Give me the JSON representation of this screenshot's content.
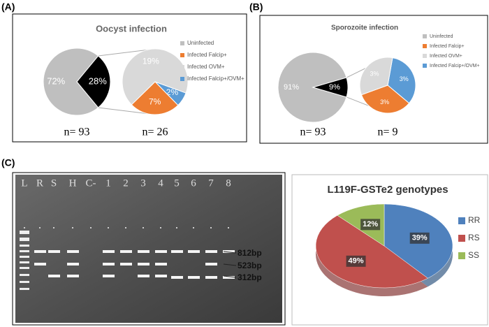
{
  "chart_data": [
    {
      "type": "pie-of-pie",
      "panel": "(A)",
      "title": "Oocyst  infection",
      "legend": [
        {
          "name": "Uninfected",
          "color": "#bfbfbf"
        },
        {
          "name": "Infected Falcip+",
          "color": "#ed7d31"
        },
        {
          "name": "Infected OVM+",
          "color": "#d9d9d9"
        },
        {
          "name": "Infected Falcip+/OVM+",
          "color": "#5b9bd5"
        }
      ],
      "pies": [
        {
          "values": [
            72,
            28
          ],
          "value_labels": [
            "72%",
            "28%"
          ],
          "colors": [
            "#bfbfbf",
            "#000000"
          ],
          "n": "n= 93"
        },
        {
          "values": [
            2,
            7,
            19
          ],
          "value_labels": [
            "2%",
            "7%",
            "19%"
          ],
          "colors": [
            "#5b9bd5",
            "#ed7d31",
            "#d9d9d9"
          ],
          "n": "n= 26"
        }
      ]
    },
    {
      "type": "pie-of-pie",
      "panel": "(B)",
      "title": "Sporozoite infection",
      "legend": [
        {
          "name": "Uninfected",
          "color": "#bfbfbf"
        },
        {
          "name": "Infected Falcip+",
          "color": "#ed7d31"
        },
        {
          "name": "Infected OVM+",
          "color": "#d9d9d9"
        },
        {
          "name": "Infected Falcip+/OVM+",
          "color": "#5b9bd5"
        }
      ],
      "pies": [
        {
          "values": [
            91,
            9
          ],
          "value_labels": [
            "91%",
            "9%"
          ],
          "colors": [
            "#bfbfbf",
            "#000000"
          ],
          "n": "n= 93"
        },
        {
          "values": [
            3,
            3,
            3
          ],
          "value_labels": [
            "3%",
            "3%",
            "3%"
          ],
          "colors": [
            "#5b9bd5",
            "#ed7d31",
            "#d9d9d9"
          ],
          "n": "n= 9"
        }
      ]
    },
    {
      "type": "pie3d",
      "title": "L119F-GSTe2 genotypes",
      "categories": [
        "RR",
        "RS",
        "SS"
      ],
      "values": [
        39,
        49,
        12
      ],
      "value_labels": [
        "39%",
        "49%",
        "12%"
      ],
      "colors": [
        "#4f81bd",
        "#c0504d",
        "#9bbb59"
      ]
    }
  ],
  "gel": {
    "panel": "(C)",
    "lanes": [
      "L",
      "R",
      "S",
      "H",
      "C-",
      "1",
      "2",
      "3",
      "4",
      "5",
      "6",
      "7",
      "8"
    ],
    "bands": [
      "812bp",
      "523bp",
      "312bp"
    ]
  }
}
